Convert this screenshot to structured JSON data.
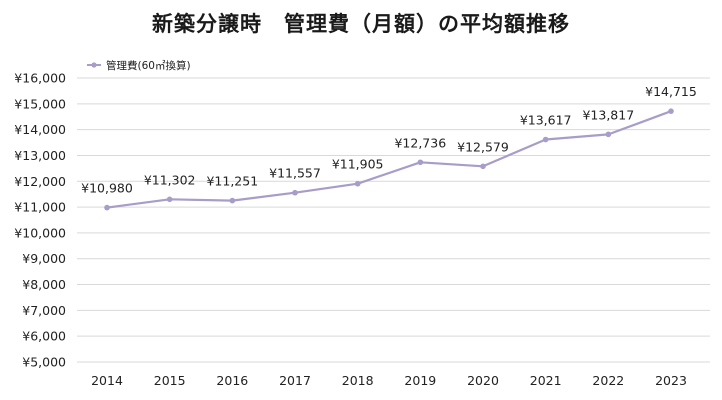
{
  "chart_data": {
    "type": "line",
    "title": "新築分譲時　管理費（月額）の平均額推移",
    "categories": [
      "2014",
      "2015",
      "2016",
      "2017",
      "2018",
      "2019",
      "2020",
      "2021",
      "2022",
      "2023"
    ],
    "series": [
      {
        "name": "管理費(60㎡換算)",
        "values": [
          10980,
          11302,
          11251,
          11557,
          11905,
          12736,
          12579,
          13617,
          13817,
          14715
        ],
        "labels": [
          "¥10,980",
          "¥11,302",
          "¥11,251",
          "¥11,557",
          "¥11,905",
          "¥12,736",
          "¥12,579",
          "¥13,617",
          "¥13,817",
          "¥14,715"
        ],
        "color": "#a89cc8"
      }
    ],
    "ylim": [
      5000,
      16000
    ],
    "yticks": [
      5000,
      6000,
      7000,
      8000,
      9000,
      10000,
      11000,
      12000,
      13000,
      14000,
      15000,
      16000
    ],
    "ytick_labels": [
      "¥5,000",
      "¥6,000",
      "¥7,000",
      "¥8,000",
      "¥9,000",
      "¥10,000",
      "¥11,000",
      "¥12,000",
      "¥13,000",
      "¥14,000",
      "¥15,000",
      "¥16,000"
    ],
    "xlabel": "",
    "ylabel": "",
    "grid": true,
    "legend_position": "top-left",
    "gridline_color": "#d9d9d9"
  }
}
